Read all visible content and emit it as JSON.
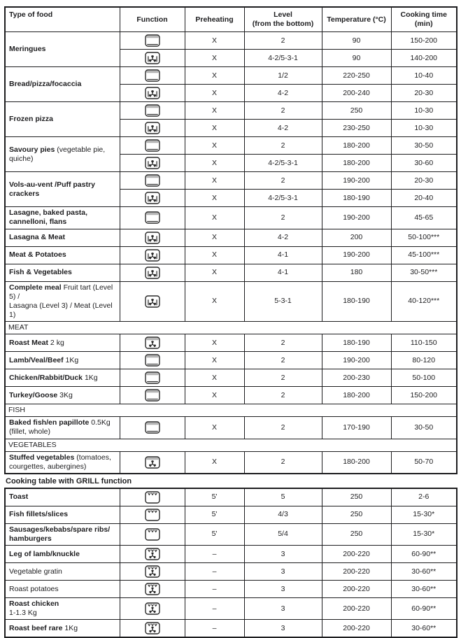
{
  "colors": {
    "border": "#1d1d1f",
    "text": "#1d1d1f",
    "icon_stroke": "#2a2a2a",
    "icon_shade": "#b3b3b3",
    "background": "#ffffff"
  },
  "headers": [
    "Type of food",
    "Function",
    "Preheating",
    "Level\n(from the bottom)",
    "Temperature (°C)",
    "Cooking time\n(min)"
  ],
  "icon_names": {
    "static": "conventional-oven-icon",
    "fan": "fan-oven-icon",
    "fan_top": "fan-upper-heat-icon",
    "grill": "grill-icon",
    "grill_fan": "grill-with-fan-icon"
  },
  "grill_heading": "Cooking table with GRILL function",
  "table1": {
    "groups": [
      {
        "food": "Meringues",
        "note": "",
        "rows": [
          [
            "static",
            "X",
            "2",
            "90",
            "150-200"
          ],
          [
            "fan",
            "X",
            "4-2/5-3-1",
            "90",
            "140-200"
          ]
        ]
      },
      {
        "food": "Bread/pizza/focaccia",
        "note": "",
        "rows": [
          [
            "static",
            "X",
            "1/2",
            "220-250",
            "10-40"
          ],
          [
            "fan",
            "X",
            "4-2",
            "200-240",
            "20-30"
          ]
        ]
      },
      {
        "food": "Frozen pizza",
        "note": "",
        "rows": [
          [
            "static",
            "X",
            "2",
            "250",
            "10-30"
          ],
          [
            "fan",
            "X",
            "4-2",
            "230-250",
            "10-30"
          ]
        ]
      },
      {
        "food": "Savoury pies",
        "note": " (vegetable pie,\nquiche)",
        "rows": [
          [
            "static",
            "X",
            "2",
            "180-200",
            "30-50"
          ],
          [
            "fan",
            "X",
            "4-2/5-3-1",
            "180-200",
            "30-60"
          ]
        ]
      },
      {
        "food": "Vols-au-vent /Puff pastry crackers",
        "note": "",
        "rows": [
          [
            "static",
            "X",
            "2",
            "190-200",
            "20-30"
          ],
          [
            "fan",
            "X",
            "4-2/5-3-1",
            "180-190",
            "20-40"
          ]
        ]
      },
      {
        "food": "Lasagne, baked pasta, cannelloni, flans",
        "note": "",
        "rows": [
          [
            "static",
            "X",
            "2",
            "190-200",
            "45-65"
          ]
        ]
      },
      {
        "food": "Lasagna & Meat",
        "note": "",
        "rows": [
          [
            "fan",
            "X",
            "4-2",
            "200",
            "50-100***"
          ]
        ]
      },
      {
        "food": "Meat & Potatoes",
        "note": "",
        "rows": [
          [
            "fan",
            "X",
            "4-1",
            "190-200",
            "45-100***"
          ]
        ]
      },
      {
        "food": "Fish & Vegetables",
        "note": "",
        "rows": [
          [
            "fan",
            "X",
            "4-1",
            "180",
            "30-50***"
          ]
        ]
      },
      {
        "food": "Complete meal",
        "note": " Fruit tart (Level 5) /\nLasagna (Level 3) / Meat (Level 1)",
        "rows": [
          [
            "fan",
            "X",
            "5-3-1",
            "180-190",
            "40-120***"
          ]
        ]
      },
      {
        "section": "MEAT"
      },
      {
        "food": "Roast Meat",
        "note": " 2 kg",
        "rows": [
          [
            "fan_top",
            "X",
            "2",
            "180-190",
            "110-150"
          ]
        ]
      },
      {
        "food": "Lamb/Veal/Beef",
        "note": " 1Kg",
        "rows": [
          [
            "static",
            "X",
            "2",
            "190-200",
            "80-120"
          ]
        ]
      },
      {
        "food": "Chicken/Rabbit/Duck",
        "note": " 1Kg",
        "rows": [
          [
            "static",
            "X",
            "2",
            "200-230",
            "50-100"
          ]
        ]
      },
      {
        "food": "Turkey/Goose",
        "note": " 3Kg",
        "rows": [
          [
            "static",
            "X",
            "2",
            "180-200",
            "150-200"
          ]
        ]
      },
      {
        "section": "FISH"
      },
      {
        "food": "Baked fish/en papillote",
        "note": " 0.5Kg\n(fillet, whole)",
        "rows": [
          [
            "static",
            "X",
            "2",
            "170-190",
            "30-50"
          ]
        ]
      },
      {
        "section": "VEGETABLES"
      },
      {
        "food": "Stuffed vegetables",
        "note": " (tomatoes,\ncourgettes, aubergines)",
        "rows": [
          [
            "fan_top",
            "X",
            "2",
            "180-200",
            "50-70"
          ]
        ]
      }
    ]
  },
  "table2": {
    "groups": [
      {
        "food": "Toast",
        "note": "",
        "rows": [
          [
            "grill",
            "5'",
            "5",
            "250",
            "2-6"
          ]
        ]
      },
      {
        "food": "Fish fillets/slices",
        "note": "",
        "rows": [
          [
            "grill",
            "5'",
            "4/3",
            "250",
            "15-30*"
          ]
        ]
      },
      {
        "food": "Sausages/kebabs/spare ribs/\nhamburgers",
        "note": "",
        "rows": [
          [
            "grill",
            "5'",
            "5/4",
            "250",
            "15-30*"
          ]
        ]
      },
      {
        "food": "Leg of lamb/knuckle",
        "note": "",
        "rows": [
          [
            "grill_fan",
            "–",
            "3",
            "200-220",
            "60-90**"
          ]
        ]
      },
      {
        "food": "",
        "note": "Vegetable gratin",
        "rows": [
          [
            "grill_fan",
            "–",
            "3",
            "200-220",
            "30-60**"
          ]
        ]
      },
      {
        "food": "",
        "note": "Roast potatoes",
        "rows": [
          [
            "grill_fan",
            "–",
            "3",
            "200-220",
            "30-60**"
          ]
        ]
      },
      {
        "food": "Roast chicken",
        "note": "\n1-1.3 Kg",
        "rows": [
          [
            "grill_fan",
            "–",
            "3",
            "200-220",
            "60-90**"
          ]
        ]
      },
      {
        "food": "Roast beef rare",
        "note": " 1Kg",
        "rows": [
          [
            "grill_fan",
            "–",
            "3",
            "200-220",
            "30-60**"
          ]
        ]
      }
    ]
  }
}
